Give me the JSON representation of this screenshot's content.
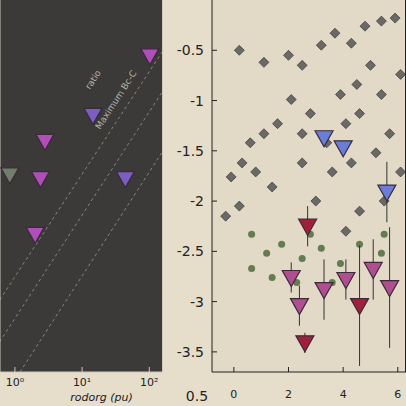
{
  "chart_data": [
    {
      "type": "scatter",
      "xlabel": "rodorg (pu)",
      "log": "x",
      "xlim": [
        0.6,
        160
      ],
      "ylim": [
        0,
        10
      ],
      "xticks": [
        {
          "value": 1,
          "label": "10⁰"
        },
        {
          "value": 10,
          "label": "10¹"
        },
        {
          "value": 100,
          "label": "10²"
        }
      ],
      "yticks": [],
      "tick_labels": "x",
      "annotations": [
        "ratio",
        "Maximum Bc-C"
      ],
      "series": [
        {
          "color": "#b04fb8",
          "marker": "triangle_down",
          "x": [
            102,
            2.8,
            2.4,
            2.0
          ],
          "values": [
            8.5,
            6.2,
            5.2,
            3.7
          ]
        },
        {
          "color": "#7a5fc0",
          "marker": "triangle_down",
          "x": [
            44,
            14.5
          ],
          "values": [
            5.2,
            6.9
          ]
        },
        {
          "color": "#6f7f6a",
          "marker": "triangle_down",
          "x": [
            0.84
          ],
          "values": [
            5.3
          ]
        }
      ]
    },
    {
      "type": "scatter",
      "xlim": [
        -0.8,
        6.3
      ],
      "ylim": [
        -3.7,
        0
      ],
      "xticks": [
        0,
        2,
        4,
        6
      ],
      "yticks": [
        -3.5,
        -3.0,
        -2.5,
        -2.0,
        -1.5,
        -1.0,
        -0.5
      ],
      "annotations": [
        "0.5"
      ],
      "series": [
        {
          "color": "#555555",
          "marker": "diamond",
          "x": [
            0.2,
            1.1,
            2.0,
            2.5,
            3.2,
            3.7,
            4.3,
            4.8,
            5.4,
            5.9,
            5.0,
            4.5,
            3.9,
            2.8,
            2.1,
            1.6,
            1.1,
            0.6,
            0.3,
            0.8,
            1.4,
            -0.1,
            0.2,
            -0.3,
            2.5,
            3.4,
            4.1,
            4.6,
            5.4,
            6.1,
            5.7,
            5.2,
            4.3,
            3.6,
            3.0,
            6.1,
            5.5,
            4.6,
            4.1,
            2.5
          ],
          "values": [
            -0.5,
            -0.62,
            -0.55,
            -0.65,
            -0.45,
            -0.33,
            -0.43,
            -0.26,
            -0.21,
            -0.18,
            -0.65,
            -0.84,
            -0.94,
            -1.13,
            -0.99,
            -1.23,
            -1.33,
            -1.42,
            -1.62,
            -1.71,
            -1.86,
            -1.76,
            -2.05,
            -2.15,
            -1.33,
            -1.42,
            -1.23,
            -1.13,
            -0.94,
            -0.74,
            -1.33,
            -1.52,
            -1.62,
            -1.71,
            -2.0,
            -1.71,
            -2.0,
            -2.1,
            -2.3,
            -1.62
          ]
        },
        {
          "color": "#4e6b3a",
          "marker": "circle",
          "x": [
            0.65,
            1.2,
            1.75,
            2.5,
            3.2,
            3.9,
            4.6,
            5.4,
            1.4,
            2.3,
            0.65,
            5.5,
            2.8,
            3.6
          ],
          "values": [
            -2.33,
            -2.52,
            -2.43,
            -2.57,
            -2.47,
            -2.62,
            -2.43,
            -2.52,
            -2.76,
            -2.81,
            -2.67,
            -2.33,
            -2.33,
            -2.81
          ]
        },
        {
          "color": "#6a7ed8",
          "marker": "triangle_down",
          "x": [
            3.3,
            4.0,
            5.6
          ],
          "values": [
            -1.37,
            -1.47,
            -1.91
          ],
          "errors": [
            0,
            0,
            0.3
          ]
        },
        {
          "color": "#b04f8f",
          "marker": "triangle_down",
          "x": [
            2.1,
            2.4,
            3.3,
            4.1,
            5.1,
            5.7
          ],
          "values": [
            -2.76,
            -3.04,
            -2.88,
            -2.78,
            -2.68,
            -2.86
          ],
          "errors": [
            0.15,
            0.2,
            0.3,
            0.2,
            0.3,
            0.6
          ]
        },
        {
          "color": "#a0203a",
          "marker": "triangle_down",
          "x": [
            2.7,
            2.6,
            4.6
          ],
          "values": [
            -2.25,
            -3.41,
            -3.04
          ],
          "errors": [
            0.2,
            0.1,
            0.6
          ]
        }
      ]
    }
  ]
}
